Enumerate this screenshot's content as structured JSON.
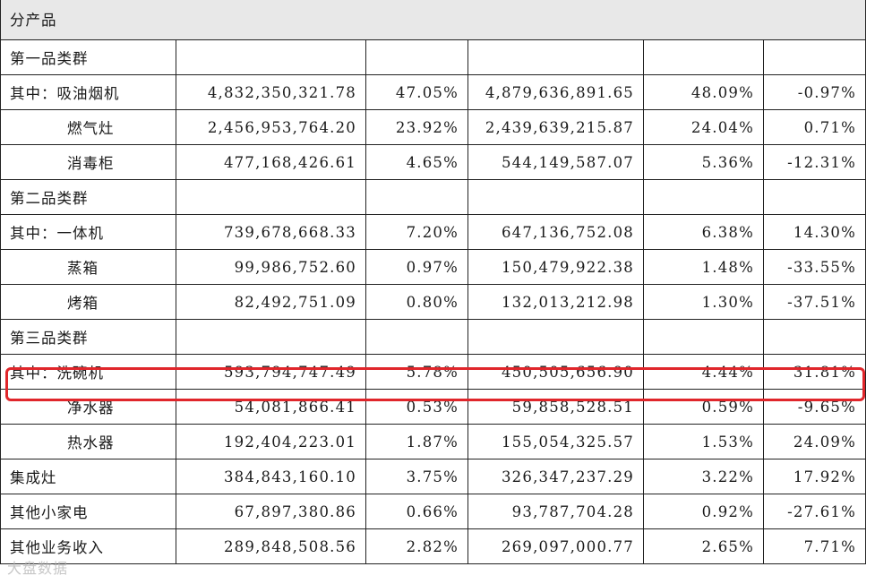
{
  "section_title": "分产品",
  "rows": [
    {
      "label": "第一品类群",
      "indent": false,
      "values": [
        "",
        "",
        "",
        "",
        ""
      ]
    },
    {
      "label": "其中：吸油烟机",
      "indent": false,
      "values": [
        "4,832,350,321.78",
        "47.05%",
        "4,879,636,891.65",
        "48.09%",
        "-0.97%"
      ]
    },
    {
      "label": "燃气灶",
      "indent": true,
      "values": [
        "2,456,953,764.20",
        "23.92%",
        "2,439,639,215.87",
        "24.04%",
        "0.71%"
      ]
    },
    {
      "label": "消毒柜",
      "indent": true,
      "values": [
        "477,168,426.61",
        "4.65%",
        "544,149,587.07",
        "5.36%",
        "-12.31%"
      ]
    },
    {
      "label": "第二品类群",
      "indent": false,
      "values": [
        "",
        "",
        "",
        "",
        ""
      ]
    },
    {
      "label": "其中：一体机",
      "indent": false,
      "values": [
        "739,678,668.33",
        "7.20%",
        "647,136,752.08",
        "6.38%",
        "14.30%"
      ]
    },
    {
      "label": "蒸箱",
      "indent": true,
      "values": [
        "99,986,752.60",
        "0.97%",
        "150,479,922.38",
        "1.48%",
        "-33.55%"
      ]
    },
    {
      "label": "烤箱",
      "indent": true,
      "values": [
        "82,492,751.09",
        "0.80%",
        "132,013,212.98",
        "1.30%",
        "-37.51%"
      ]
    },
    {
      "label": "第三品类群",
      "indent": false,
      "values": [
        "",
        "",
        "",
        "",
        ""
      ]
    },
    {
      "label": "其中：洗碗机",
      "indent": false,
      "values": [
        "593,794,747.49",
        "5.78%",
        "450,505,656.90",
        "4.44%",
        "31.81%"
      ]
    },
    {
      "label": "净水器",
      "indent": true,
      "values": [
        "54,081,866.41",
        "0.53%",
        "59,858,528.51",
        "0.59%",
        "-9.65%"
      ]
    },
    {
      "label": "热水器",
      "indent": true,
      "values": [
        "192,404,223.01",
        "1.87%",
        "155,054,325.57",
        "1.53%",
        "24.09%"
      ]
    },
    {
      "label": "集成灶",
      "indent": false,
      "values": [
        "384,843,160.10",
        "3.75%",
        "326,347,237.29",
        "3.22%",
        "17.92%"
      ]
    },
    {
      "label": "其他小家电",
      "indent": false,
      "values": [
        "67,897,380.86",
        "0.66%",
        "93,787,704.28",
        "0.92%",
        "-27.61%"
      ]
    },
    {
      "label": "其他业务收入",
      "indent": false,
      "values": [
        "289,848,508.56",
        "2.82%",
        "269,097,000.77",
        "2.65%",
        "7.71%"
      ]
    }
  ],
  "highlight_color": "#e0262b",
  "watermark": "大盘数据"
}
